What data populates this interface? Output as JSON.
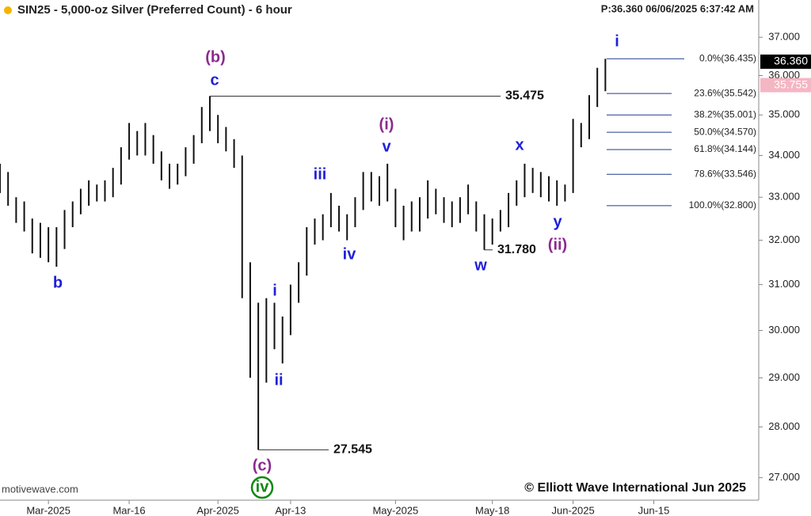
{
  "chart_data": {
    "type": "ohlc",
    "title": "SIN25 - 5,000-oz Silver (Preferred Count) - 6 hour",
    "header": "P:36.360  06/06/2025 6:37:42 AM",
    "watermark": "motivewave.com",
    "copyright": "© Elliott Wave International Jun 2025",
    "log_scale": true,
    "color": "#111111",
    "x": [
      "2025-02-21",
      "2025-02-24",
      "2025-02-25",
      "2025-02-26",
      "2025-02-27",
      "2025-02-28",
      "2025-03-03",
      "2025-03-04",
      "2025-03-05",
      "2025-03-06",
      "2025-03-07",
      "2025-03-10",
      "2025-03-11",
      "2025-03-12",
      "2025-03-13",
      "2025-03-14",
      "2025-03-17",
      "2025-03-18",
      "2025-03-19",
      "2025-03-20",
      "2025-03-21",
      "2025-03-24",
      "2025-03-25",
      "2025-03-26",
      "2025-03-27",
      "2025-03-28",
      "2025-03-31",
      "2025-04-01",
      "2025-04-02",
      "2025-04-03",
      "2025-04-04",
      "2025-04-07",
      "2025-04-08",
      "2025-04-09",
      "2025-04-10",
      "2025-04-11",
      "2025-04-14",
      "2025-04-15",
      "2025-04-16",
      "2025-04-17",
      "2025-04-18",
      "2025-04-21",
      "2025-04-22",
      "2025-04-23",
      "2025-04-24",
      "2025-04-25",
      "2025-04-28",
      "2025-04-29",
      "2025-04-30",
      "2025-05-01",
      "2025-05-02",
      "2025-05-05",
      "2025-05-06",
      "2025-05-07",
      "2025-05-08",
      "2025-05-09",
      "2025-05-12",
      "2025-05-13",
      "2025-05-14",
      "2025-05-15",
      "2025-05-16",
      "2025-05-19",
      "2025-05-20",
      "2025-05-21",
      "2025-05-22",
      "2025-05-23",
      "2025-05-26",
      "2025-05-27",
      "2025-05-28",
      "2025-05-29",
      "2025-05-30",
      "2025-06-02",
      "2025-06-03",
      "2025-06-04",
      "2025-06-05",
      "2025-06-06"
    ],
    "high": [
      33.8,
      33.6,
      33.0,
      32.9,
      32.5,
      32.4,
      32.3,
      32.3,
      32.7,
      32.9,
      33.2,
      33.4,
      33.3,
      33.4,
      33.7,
      34.2,
      34.8,
      34.6,
      34.8,
      34.5,
      34.1,
      33.8,
      33.8,
      34.2,
      34.5,
      35.2,
      35.475,
      35.0,
      34.7,
      34.4,
      34.0,
      31.5,
      30.6,
      30.7,
      30.6,
      30.3,
      31.0,
      31.5,
      32.3,
      32.5,
      32.6,
      33.1,
      32.8,
      32.6,
      33.0,
      33.6,
      33.6,
      33.5,
      33.8,
      33.2,
      32.8,
      32.9,
      33.0,
      33.4,
      33.2,
      33.0,
      32.9,
      33.0,
      33.3,
      32.9,
      32.6,
      32.5,
      32.7,
      33.1,
      33.4,
      33.8,
      33.7,
      33.6,
      33.5,
      33.4,
      33.3,
      34.9,
      34.8,
      35.5,
      36.2,
      36.435
    ],
    "low": [
      33.1,
      32.8,
      32.4,
      32.2,
      31.7,
      31.6,
      31.5,
      31.4,
      31.8,
      32.3,
      32.6,
      32.8,
      32.9,
      32.9,
      33.0,
      33.3,
      33.9,
      34.0,
      34.0,
      33.8,
      33.4,
      33.2,
      33.3,
      33.5,
      33.8,
      34.3,
      34.6,
      34.3,
      34.1,
      33.7,
      30.7,
      29.0,
      27.545,
      28.9,
      29.6,
      29.3,
      29.9,
      30.6,
      31.2,
      31.9,
      32.0,
      32.3,
      32.2,
      32.0,
      32.3,
      32.7,
      32.9,
      32.8,
      32.9,
      32.3,
      32.0,
      32.2,
      32.2,
      32.5,
      32.6,
      32.4,
      32.3,
      32.4,
      32.6,
      32.2,
      31.78,
      31.9,
      32.2,
      32.3,
      32.8,
      33.0,
      33.1,
      33.0,
      32.9,
      32.8,
      32.9,
      33.1,
      34.2,
      34.4,
      35.2,
      35.6
    ],
    "xlim": [
      "2025-02-21",
      "2025-07-03"
    ],
    "xticks": [
      {
        "value": "2025-03-01",
        "label": "Mar-2025"
      },
      {
        "value": "2025-03-16",
        "label": "Mar-16"
      },
      {
        "value": "2025-04-01",
        "label": "Apr-2025"
      },
      {
        "value": "2025-04-13",
        "label": "Apr-13"
      },
      {
        "value": "2025-05-01",
        "label": "May-2025"
      },
      {
        "value": "2025-05-18",
        "label": "May-18"
      },
      {
        "value": "2025-06-01",
        "label": "Jun-2025"
      },
      {
        "value": "2025-06-15",
        "label": "Jun-15"
      }
    ],
    "ylim": [
      26.6,
      38.0
    ],
    "yticks": [
      {
        "value": 27,
        "label": "27.000"
      },
      {
        "value": 28,
        "label": "28.000"
      },
      {
        "value": 29,
        "label": "29.000"
      },
      {
        "value": 30,
        "label": "30.000"
      },
      {
        "value": 31,
        "label": "31.000"
      },
      {
        "value": 32,
        "label": "32.000"
      },
      {
        "value": 33,
        "label": "33.000"
      },
      {
        "value": 34,
        "label": "34.000"
      },
      {
        "value": 35,
        "label": "35.000"
      },
      {
        "value": 36,
        "label": "36.000"
      },
      {
        "value": 37,
        "label": "37.000"
      }
    ],
    "price_tags": [
      {
        "value": 36.36,
        "label": "36.360",
        "color": "#000000"
      },
      {
        "value": 35.755,
        "label": "35.755",
        "color": "#f5b6c3"
      }
    ],
    "levels": [
      {
        "value": 35.475,
        "label": "35.475"
      },
      {
        "value": 27.545,
        "label": "27.545"
      },
      {
        "value": 31.78,
        "label": "31.780"
      }
    ],
    "fib_color": "#1f3a8f",
    "fib": [
      {
        "value": 36.435,
        "label": "0.0%(36.435)"
      },
      {
        "value": 35.542,
        "label": "23.6%(35.542)"
      },
      {
        "value": 35.001,
        "label": "38.2%(35.001)"
      },
      {
        "value": 34.57,
        "label": "50.0%(34.570)"
      },
      {
        "value": 34.144,
        "label": "61.8%(34.144)"
      },
      {
        "value": 33.546,
        "label": "78.6%(33.546)"
      },
      {
        "value": 32.8,
        "label": "100.0%(32.800)"
      }
    ],
    "wave_labels": [
      {
        "text": "b",
        "color": "#1f1fd8"
      },
      {
        "text": "(b)",
        "color": "#8b2b8f"
      },
      {
        "text": "c",
        "color": "#1f1fd8"
      },
      {
        "text": "(c)",
        "color": "#8b2b8f"
      },
      {
        "text": "iv",
        "color": "#118811"
      },
      {
        "text": "i",
        "color": "#1f1fd8"
      },
      {
        "text": "ii",
        "color": "#1f1fd8"
      },
      {
        "text": "iii",
        "color": "#1f1fd8"
      },
      {
        "text": "iv",
        "color": "#1f1fd8"
      },
      {
        "text": "(i)",
        "color": "#8b2b8f"
      },
      {
        "text": "v",
        "color": "#1f1fd8"
      },
      {
        "text": "w",
        "color": "#1f1fd8"
      },
      {
        "text": "x",
        "color": "#1f1fd8"
      },
      {
        "text": "y",
        "color": "#1f1fd8"
      },
      {
        "text": "(ii)",
        "color": "#8b2b8f"
      },
      {
        "text": "i",
        "color": "#1f1fd8"
      }
    ]
  }
}
